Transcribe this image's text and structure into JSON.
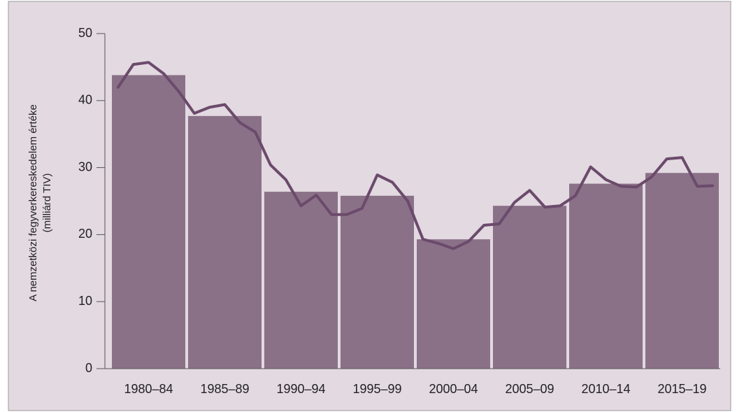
{
  "chart_data": {
    "type": "bar",
    "ylabel": [
      "A nemzetközi fegyverkereskedelem értéke",
      "(milliárd TIV)"
    ],
    "categories": [
      "1980–84",
      "1985–89",
      "1990–94",
      "1995–99",
      "2000–04",
      "2005–09",
      "2010–14",
      "2015–19"
    ],
    "values": [
      43.8,
      37.7,
      26.4,
      25.8,
      19.3,
      24.3,
      27.6,
      29.2
    ],
    "color": "#8a7188",
    "line": {
      "color": "#6b4a6b",
      "values": [
        42.0,
        45.4,
        45.7,
        44.0,
        41.3,
        38.1,
        39.0,
        39.4,
        36.7,
        35.3,
        30.4,
        28.2,
        24.3,
        25.9,
        23.0,
        23.0,
        23.9,
        28.9,
        27.8,
        25.0,
        19.3,
        18.7,
        17.9,
        19.0,
        21.4,
        21.6,
        24.8,
        26.6,
        24.1,
        24.3,
        25.8,
        30.1,
        28.2,
        27.2,
        27.1,
        28.6,
        31.3,
        31.5,
        27.2,
        27.3
      ]
    },
    "ylim": [
      0,
      50
    ],
    "yticks": [
      0,
      10,
      20,
      30,
      40,
      50
    ]
  }
}
